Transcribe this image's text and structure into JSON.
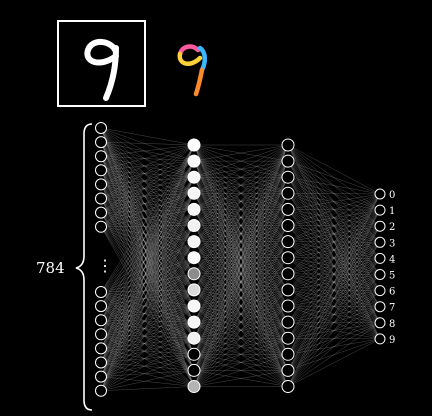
{
  "input_image": {
    "digit": "9",
    "frame_color": "#ffffff"
  },
  "colored_digit": {
    "digit": "9",
    "stroke_colors": [
      "#ff5aa0",
      "#ffd23a",
      "#3ab8ff",
      "#ff8a2a"
    ]
  },
  "network": {
    "input_count_label": "784",
    "input_ellipsis": "⋮",
    "layers": [
      {
        "nodes_top": 8,
        "nodes_bottom": 8,
        "has_ellipsis": true
      },
      {
        "nodes": 16,
        "activations": [
          1,
          0.98,
          0.97,
          0.96,
          0.97,
          0.95,
          0.96,
          0.98,
          0.55,
          0.85,
          0.97,
          0.96,
          0.94,
          0,
          0,
          0.7
        ]
      },
      {
        "nodes": 16
      },
      {
        "nodes": 10
      }
    ],
    "output_labels": [
      "0",
      "1",
      "2",
      "3",
      "4",
      "5",
      "6",
      "7",
      "8",
      "9"
    ],
    "edge_color": "#bdbdbd",
    "node_stroke": "#ffffff"
  }
}
